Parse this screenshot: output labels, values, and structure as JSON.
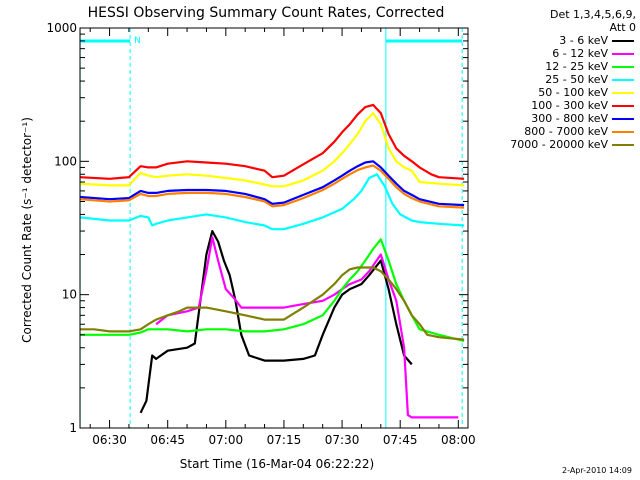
{
  "chart_data": {
    "type": "line",
    "title": "HESSI Observing Summary Count Rates, Corrected",
    "xlabel": "Start Time (16-Mar-04 06:22:22)",
    "ylabel": "Corrected Count Rate (s⁻¹ detector⁻¹)",
    "x_ticks": [
      "06:30",
      "06:45",
      "07:00",
      "07:15",
      "07:30",
      "07:45",
      "08:00"
    ],
    "x_tick_minutes": [
      30,
      45,
      60,
      75,
      90,
      105,
      120
    ],
    "x_range_minutes": [
      22.37,
      122.5
    ],
    "y_ticks": [
      "1",
      "10",
      "100",
      "1000"
    ],
    "y_tick_values": [
      1,
      10,
      100,
      1000
    ],
    "ylim": [
      1,
      1000
    ],
    "y_scale": "log",
    "legend": {
      "header": [
        "Det 1,3,4,5,6,9,",
        "Att 0"
      ],
      "placement": "right"
    },
    "series": [
      {
        "name": "3 - 6 keV",
        "color": "#000000",
        "x": [
          22.4,
          35,
          38,
          39.5,
          41,
          42,
          45,
          50,
          52,
          55,
          56.5,
          58,
          59.5,
          61,
          62.5,
          64,
          66,
          70,
          75,
          80,
          83,
          85,
          88,
          90,
          92,
          95,
          97,
          100,
          102,
          104,
          106,
          108,
          110,
          112,
          115,
          118,
          121.5
        ],
        "y": [
          null,
          null,
          1.3,
          1.6,
          3.5,
          3.3,
          3.8,
          4.0,
          4.3,
          20,
          30,
          25,
          18,
          14,
          9,
          5,
          3.5,
          3.2,
          3.2,
          3.3,
          3.5,
          5,
          8,
          10,
          11,
          12,
          14,
          18,
          11,
          6,
          3.5,
          3.0,
          null,
          null,
          null,
          null,
          null
        ]
      },
      {
        "name": "6 - 12 keV",
        "color": "#ff00ff",
        "x": [
          22.4,
          35,
          40,
          42,
          45,
          50,
          53,
          55,
          56.5,
          58,
          60,
          62,
          64,
          66,
          70,
          75,
          80,
          85,
          88,
          90,
          92,
          95,
          97,
          100,
          102,
          104,
          106,
          107,
          108,
          110,
          115,
          120
        ],
        "y": [
          null,
          null,
          null,
          6,
          7,
          7.5,
          8,
          15,
          27,
          18,
          11,
          9.5,
          8,
          8,
          8,
          8,
          8.5,
          9,
          10,
          11,
          12,
          13,
          15,
          20,
          13,
          9,
          4,
          1.25,
          1.2,
          1.2,
          1.2,
          1.2
        ]
      },
      {
        "name": "12 - 25 keV",
        "color": "#00ff00",
        "x": [
          22.4,
          26,
          30,
          35,
          38,
          40,
          42,
          45,
          50,
          55,
          60,
          65,
          70,
          75,
          80,
          85,
          88,
          90,
          92,
          94,
          96,
          98,
          100,
          102,
          104,
          106,
          108,
          110,
          115,
          121.5
        ],
        "y": [
          5,
          5,
          5,
          5,
          5.2,
          5.5,
          5.5,
          5.5,
          5.3,
          5.5,
          5.5,
          5.3,
          5.3,
          5.5,
          6,
          7,
          9,
          11,
          13,
          15,
          18,
          22,
          26,
          18,
          12,
          9,
          7,
          5.5,
          5,
          4.5
        ]
      },
      {
        "name": "25 - 50 keV",
        "color": "#00ffff",
        "x": [
          22.4,
          30,
          35,
          38,
          40,
          41,
          42,
          45,
          50,
          55,
          60,
          65,
          70,
          72,
          75,
          80,
          85,
          90,
          93,
          95,
          97,
          99,
          101,
          103,
          105,
          108,
          110,
          115,
          121.5
        ],
        "y": [
          38,
          36,
          36,
          39,
          38,
          33,
          34,
          36,
          38,
          40,
          38,
          35,
          33,
          31,
          31,
          34,
          38,
          44,
          52,
          60,
          75,
          80,
          65,
          48,
          40,
          36,
          35,
          34,
          33
        ]
      },
      {
        "name": "50 - 100 keV",
        "color": "#ffff00",
        "x": [
          22.4,
          30,
          35,
          38,
          40,
          42,
          45,
          50,
          55,
          60,
          65,
          70,
          72,
          75,
          80,
          85,
          88,
          90,
          92,
          94,
          96,
          98,
          100,
          102,
          104,
          106,
          108,
          110,
          115,
          121.5
        ],
        "y": [
          68,
          66,
          66,
          82,
          78,
          76,
          78,
          80,
          78,
          75,
          72,
          67,
          65,
          65,
          72,
          85,
          100,
          115,
          135,
          160,
          200,
          230,
          190,
          125,
          100,
          90,
          85,
          70,
          68,
          66
        ]
      },
      {
        "name": "100 - 300 keV",
        "color": "#ff0000",
        "x": [
          22.4,
          30,
          35,
          38,
          40,
          42,
          45,
          50,
          55,
          60,
          65,
          70,
          72,
          75,
          80,
          85,
          88,
          90,
          92,
          94,
          96,
          98,
          100,
          102,
          104,
          106,
          108,
          110,
          113,
          115,
          121.5
        ],
        "y": [
          76,
          74,
          76,
          92,
          90,
          90,
          96,
          100,
          98,
          96,
          92,
          85,
          76,
          78,
          95,
          115,
          140,
          165,
          190,
          225,
          255,
          265,
          230,
          160,
          125,
          110,
          100,
          90,
          80,
          76,
          74
        ]
      },
      {
        "name": "300 - 800 keV",
        "color": "#0000ff",
        "x": [
          22.4,
          30,
          35,
          38,
          40,
          42,
          45,
          50,
          55,
          60,
          65,
          70,
          72,
          75,
          80,
          85,
          88,
          90,
          92,
          94,
          96,
          98,
          100,
          102,
          104,
          106,
          108,
          110,
          115,
          121.5
        ],
        "y": [
          54,
          52,
          53,
          60,
          58,
          58,
          60,
          61,
          61,
          60,
          57,
          52,
          48,
          49,
          56,
          64,
          72,
          78,
          85,
          92,
          98,
          100,
          90,
          78,
          68,
          60,
          56,
          52,
          48,
          47
        ]
      },
      {
        "name": "800 - 7000 keV",
        "color": "#ff8000",
        "x": [
          22.4,
          30,
          35,
          38,
          40,
          42,
          45,
          50,
          55,
          60,
          65,
          70,
          72,
          75,
          80,
          85,
          88,
          90,
          92,
          94,
          96,
          98,
          100,
          102,
          104,
          106,
          108,
          110,
          115,
          121.5
        ],
        "y": [
          52,
          50,
          51,
          57,
          55,
          55,
          57,
          58,
          58,
          57,
          54,
          50,
          46,
          47,
          53,
          61,
          68,
          74,
          80,
          86,
          90,
          93,
          85,
          74,
          64,
          57,
          53,
          50,
          46,
          45
        ]
      },
      {
        "name": "7000 - 20000 keV",
        "color": "#808000",
        "x": [
          22.4,
          26,
          30,
          35,
          38,
          40,
          42,
          45,
          48,
          50,
          52,
          55,
          60,
          65,
          70,
          75,
          80,
          85,
          88,
          90,
          92,
          94,
          96,
          98,
          100,
          102,
          104,
          106,
          108,
          110,
          112,
          115,
          121.5
        ],
        "y": [
          5.5,
          5.5,
          5.3,
          5.3,
          5.5,
          6,
          6.5,
          7,
          7.5,
          8,
          8,
          8,
          7.5,
          7,
          6.5,
          6.5,
          8,
          10,
          12,
          14,
          15.5,
          16,
          16,
          16,
          15,
          13,
          11,
          9,
          7,
          6,
          5,
          4.8,
          4.6
        ]
      }
    ],
    "annotations": [
      {
        "text": "N",
        "color": "#00ffff"
      }
    ],
    "event_bars": {
      "color": "#00ffff",
      "solid_bars_minutes": [
        [
          22.4,
          35.3
        ],
        [
          101.3,
          121.0
        ]
      ],
      "dashed_lines_minutes": [
        35.3,
        121.0
      ],
      "solid_lines_minutes": [
        22.4,
        101.3
      ]
    }
  },
  "footer": {
    "stamp": "2-Apr-2010 14:09"
  }
}
